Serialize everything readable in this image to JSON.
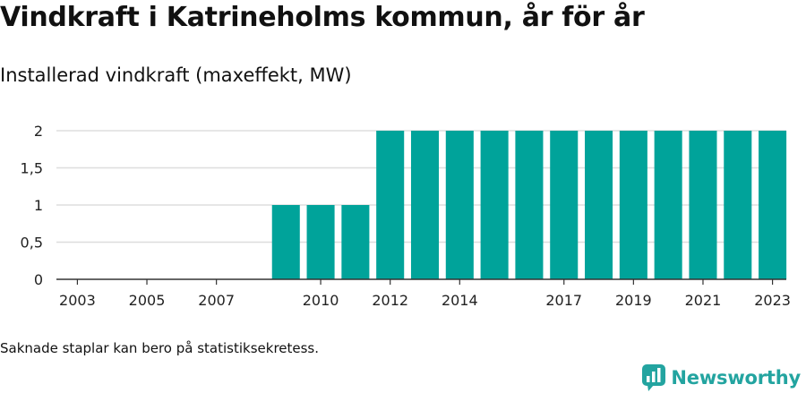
{
  "header": {
    "title": "Vindkraft i Katrineholms kommun, år för år",
    "subtitle": "Installerad vindkraft (maxeffekt, MW)"
  },
  "footer": {
    "note": "Saknade staplar kan bero på statistiksekretess.",
    "brand": "Newsworthy",
    "brand_icon": "newsworthy-logo-icon"
  },
  "chart_data": {
    "type": "bar",
    "categories": [
      "2003",
      "2004",
      "2005",
      "2006",
      "2007",
      "2008",
      "2009",
      "2010",
      "2011",
      "2012",
      "2013",
      "2014",
      "2015",
      "2016",
      "2017",
      "2018",
      "2019",
      "2020",
      "2021",
      "2022",
      "2023"
    ],
    "values": [
      0,
      0,
      0,
      0,
      0,
      0,
      1,
      1,
      1,
      2,
      2,
      2,
      2,
      2,
      2,
      2,
      2,
      2,
      2,
      2,
      2
    ],
    "x_tick_labels": [
      "2003",
      "2005",
      "2007",
      "2010",
      "2012",
      "2014",
      "2017",
      "2019",
      "2021",
      "2023"
    ],
    "y_ticks": [
      0,
      0.5,
      1,
      1.5,
      2
    ],
    "y_tick_labels": [
      "0",
      "0,5",
      "1",
      "1,5",
      "2"
    ],
    "ylim": [
      0,
      2
    ],
    "grid": true,
    "bar_color": "#00a39a",
    "gridline_color": "#dddddd",
    "axis_color": "#333333"
  }
}
